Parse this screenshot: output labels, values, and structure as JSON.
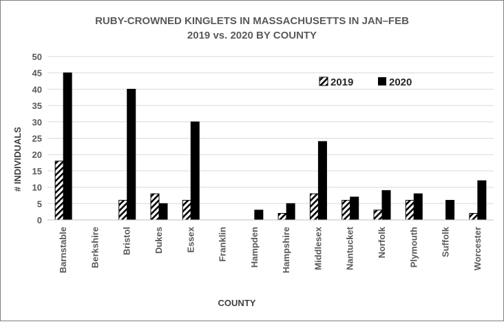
{
  "chart_data": {
    "type": "bar",
    "title": [
      "RUBY-CROWNED KINGLETS IN MASSACHUSETTS IN JAN–FEB",
      "2019 vs. 2020 BY COUNTY"
    ],
    "xlabel": "COUNTY",
    "ylabel": "# INDIVIDUALS",
    "ylim": [
      0,
      50
    ],
    "yticks": [
      0,
      5,
      10,
      15,
      20,
      25,
      30,
      35,
      40,
      45,
      50
    ],
    "grid": true,
    "legend_position": "top-right",
    "categories": [
      "Barnstable",
      "Berkshire",
      "Bristol",
      "Dukes",
      "Essex",
      "Franklin",
      "Hampden",
      "Hampshire",
      "Middlesex",
      "Nantucket",
      "Norfolk",
      "Plymouth",
      "Suffolk",
      "Worcester"
    ],
    "series": [
      {
        "name": "2019",
        "pattern": "diagonal-hatch",
        "color": "#000000",
        "values": [
          18,
          0,
          6,
          8,
          6,
          0,
          0,
          2,
          8,
          6,
          3,
          6,
          0,
          2
        ]
      },
      {
        "name": "2020",
        "pattern": "solid",
        "color": "#000000",
        "values": [
          45,
          0,
          40,
          5,
          30,
          0,
          3,
          5,
          24,
          7,
          9,
          8,
          6,
          12
        ]
      }
    ]
  }
}
